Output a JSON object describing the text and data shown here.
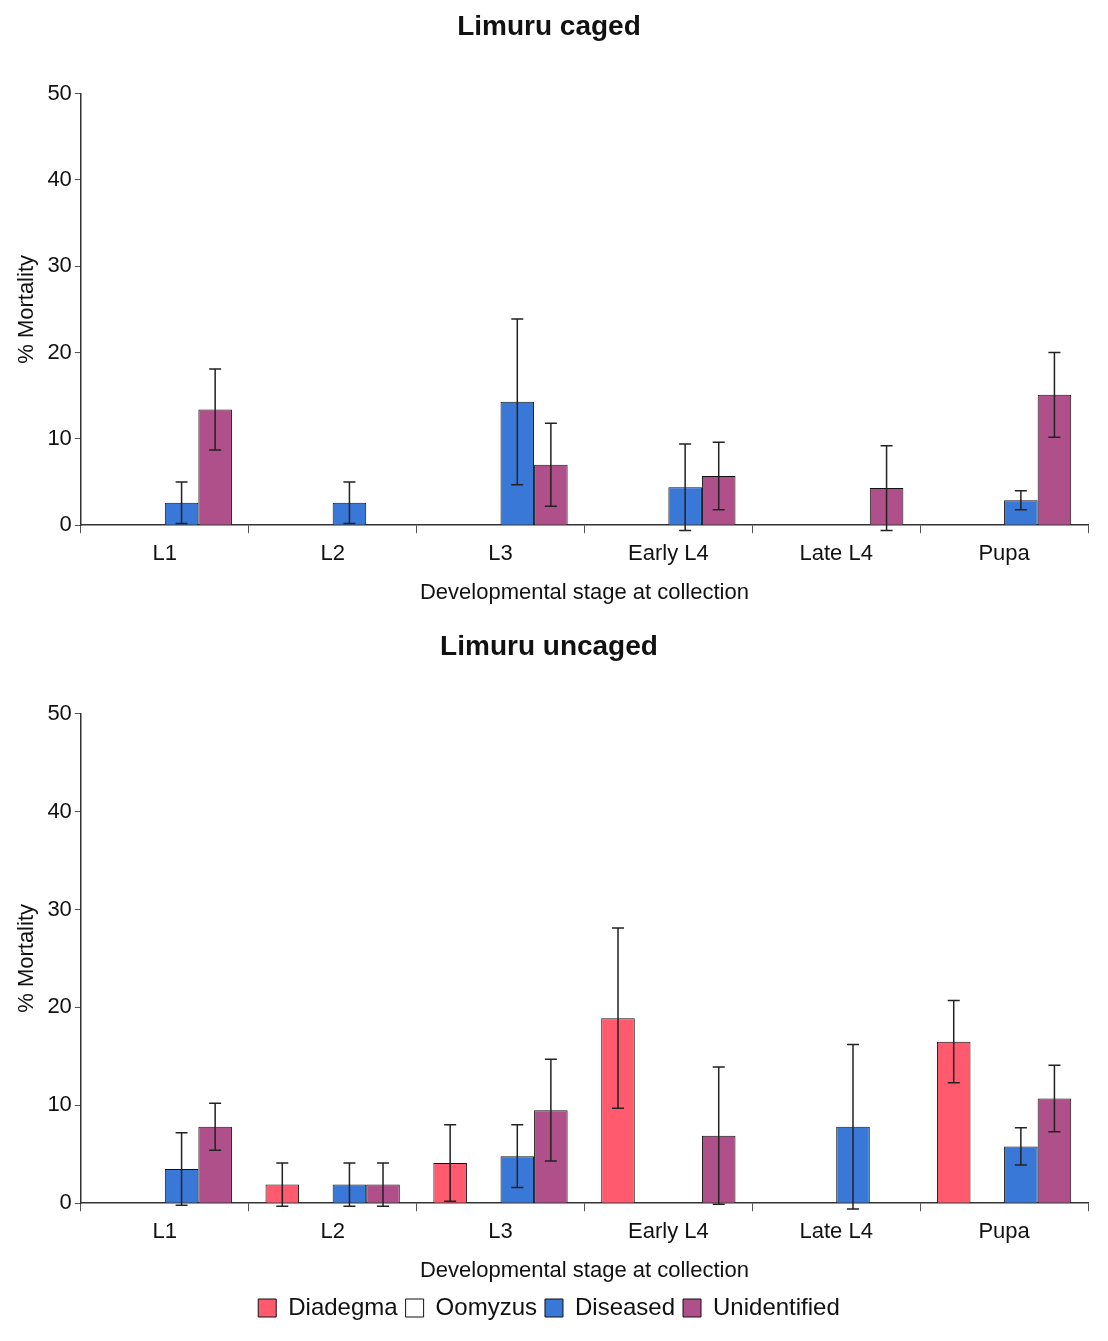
{
  "chart_data": [
    {
      "type": "bar",
      "title": "Limuru caged",
      "xlabel": "Developmental stage at collection",
      "ylabel": "% Mortality",
      "categories": [
        "L1",
        "L2",
        "L3",
        "Early L4",
        "Late L4",
        "Pupa"
      ],
      "ylim": [
        0,
        50
      ],
      "yticks": [
        0,
        10,
        20,
        30,
        40,
        50
      ],
      "grid": false,
      "legend": false,
      "series": [
        {
          "color": "#ff5a6e",
          "values": [
            0,
            0,
            0,
            0,
            0,
            0
          ]
        },
        {
          "color": "#ffffff",
          "values": [
            0,
            0,
            0,
            0,
            0,
            0
          ]
        },
        {
          "color": "#3a78d8",
          "values": [
            2.6,
            2.6,
            14.3,
            4.4,
            0,
            2.9
          ],
          "errors": [
            2.4,
            2.4,
            9.6,
            5,
            null,
            1.1
          ]
        },
        {
          "color": "#b0508a",
          "values": [
            13.4,
            0,
            7,
            5.7,
            4.3,
            15.1
          ],
          "errors": [
            4.7,
            null,
            4.8,
            3.9,
            4.9,
            4.9
          ]
        }
      ]
    },
    {
      "type": "bar",
      "title": "Limuru uncaged",
      "xlabel": "Developmental stage at collection",
      "ylabel": "% Mortality",
      "categories": [
        "L1",
        "L2",
        "L3",
        "Early L4",
        "Late L4",
        "Pupa"
      ],
      "ylim": [
        0,
        50
      ],
      "yticks": [
        0,
        10,
        20,
        30,
        40,
        50
      ],
      "grid": false,
      "legend": "bottom",
      "series": [
        {
          "name": "Diadegma",
          "color": "#ff5a6e",
          "values": [
            0,
            1.9,
            4.1,
            18.9,
            0,
            16.5
          ],
          "errors": [
            null,
            2.2,
            3.9,
            9.2,
            null,
            4.2
          ]
        },
        {
          "name": "Oomyzus",
          "color": "#ffffff",
          "values": [
            0,
            0,
            0,
            0,
            0,
            0
          ]
        },
        {
          "name": "Diseased",
          "color": "#3a78d8",
          "values": [
            3.5,
            1.9,
            4.8,
            0,
            7.8,
            5.8
          ],
          "errors": [
            3.7,
            2.2,
            3.2,
            null,
            8.4,
            1.9
          ]
        },
        {
          "name": "Unidentified",
          "color": "#b0508a",
          "values": [
            7.8,
            1.9,
            9.5,
            6.9,
            0,
            10.7
          ],
          "errors": [
            2.4,
            2.2,
            5.2,
            7,
            null,
            3.4
          ]
        }
      ]
    }
  ]
}
